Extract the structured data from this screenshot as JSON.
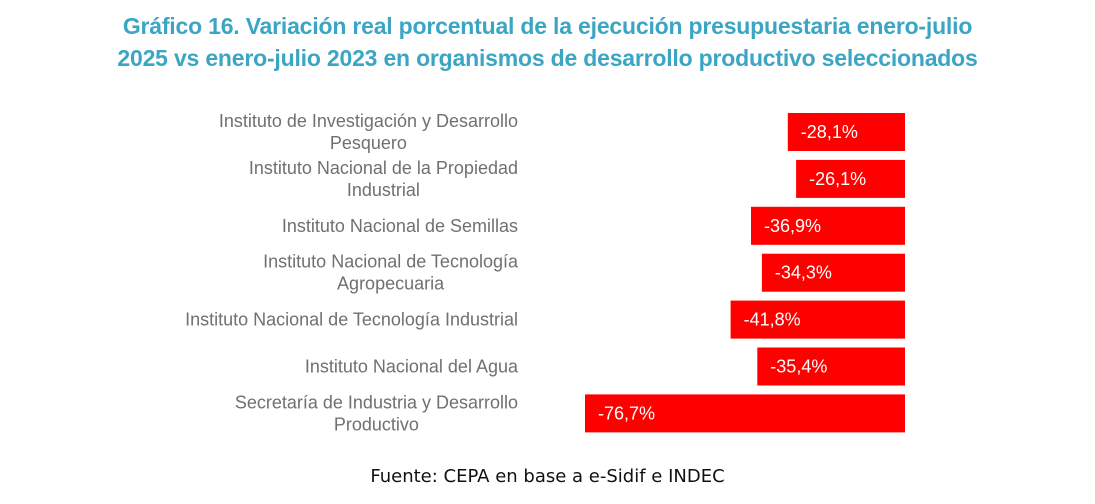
{
  "chart_data": {
    "type": "bar",
    "orientation": "horizontal",
    "title": "Gráfico 16. Variación real porcentual de la ejecución presupuestaria enero-julio 2025 vs enero-julio 2023 en organismos de desarrollo productivo seleccionados",
    "title_lines": [
      "Gráfico 16. Variación real porcentual de la ejecución presupuestaria enero-julio",
      "2025 vs enero-julio 2023 en organismos de desarrollo productivo seleccionados"
    ],
    "categories": [
      [
        "Instituto de Investigación y Desarrollo",
        "Pesquero"
      ],
      [
        "Instituto Nacional de la Propiedad",
        "Industrial"
      ],
      [
        "Instituto Nacional de Semillas"
      ],
      [
        "Instituto Nacional de Tecnología",
        "Agropecuaria"
      ],
      [
        "Instituto Nacional de Tecnología Industrial"
      ],
      [
        "Instituto Nacional del Agua"
      ],
      [
        "Secretaría de Industria y Desarrollo",
        "Productivo"
      ]
    ],
    "values": [
      -28.1,
      -26.1,
      -36.9,
      -34.3,
      -41.8,
      -35.4,
      -76.7
    ],
    "data_labels": [
      "-28,1%",
      "-26,1%",
      "-36,9%",
      "-34,3%",
      "-41,8%",
      "-35,4%",
      "-76,7%"
    ],
    "xlabel": "",
    "ylabel": "",
    "xlim": [
      -80,
      0
    ],
    "grid": false,
    "legend": "none",
    "bar_color": "#ff0000",
    "label_color": "#ffffff",
    "category_label_color": "#707070",
    "source": "Fuente: CEPA en base a e-Sidif e INDEC"
  }
}
